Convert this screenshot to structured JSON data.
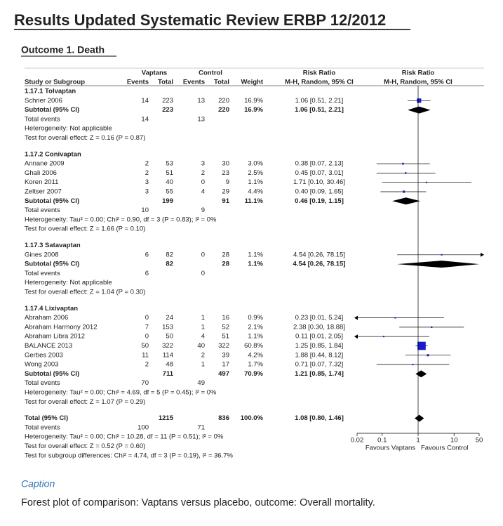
{
  "title": "Results Updated Systematic Review ERBP 12/2012",
  "outcome": "Outcome 1. Death",
  "header": {
    "group1": "Vaptans",
    "group2": "Control",
    "rr": "Risk Ratio",
    "rr_plot": "Risk Ratio",
    "study": "Study or Subgroup",
    "events1": "Events",
    "total1": "Total",
    "events2": "Events",
    "total2": "Total",
    "weight": "Weight",
    "method": "M-H, Random, 95% CI",
    "method_plot": "M-H, Random, 95% CI"
  },
  "axis": {
    "log": true,
    "xlim": [
      0.02,
      50
    ],
    "ticks": [
      0.02,
      0.1,
      1,
      10,
      50
    ],
    "ref": 1,
    "left_label": "Favours Vaptans",
    "right_label": "Favours Control"
  },
  "rows": [
    {
      "kind": "group",
      "name": "1.17.1 Tolvaptan"
    },
    {
      "kind": "study",
      "name": "Schrier 2006",
      "ve": 14,
      "vt": 223,
      "ce": 13,
      "ct": 220,
      "weight": 16.9,
      "weight_label": "16.9%",
      "ci_label": "1.06 [0.51, 2.21]",
      "est": 1.06,
      "lo": 0.51,
      "hi": 2.21
    },
    {
      "kind": "subtotal",
      "name": "Subtotal (95% CI)",
      "vt": 223,
      "ct": 220,
      "weight": 16.9,
      "weight_label": "16.9%",
      "ci_label": "1.06 [0.51, 2.21]",
      "est": 1.06,
      "lo": 0.51,
      "hi": 2.21
    },
    {
      "kind": "events",
      "name": "Total events",
      "ve": 14,
      "ce": 13
    },
    {
      "kind": "note",
      "name": "Heterogeneity: Not applicable"
    },
    {
      "kind": "note",
      "name": "Test for overall effect: Z = 0.16 (P = 0.87)"
    },
    {
      "kind": "group",
      "name": "1.17.2 Conivaptan"
    },
    {
      "kind": "study",
      "name": "Annane 2009",
      "ve": 2,
      "vt": 53,
      "ce": 3,
      "ct": 30,
      "weight": 3.0,
      "weight_label": "3.0%",
      "ci_label": "0.38 [0.07, 2.13]",
      "est": 0.38,
      "lo": 0.07,
      "hi": 2.13
    },
    {
      "kind": "study",
      "name": "Ghali 2006",
      "ve": 2,
      "vt": 51,
      "ce": 2,
      "ct": 23,
      "weight": 2.5,
      "weight_label": "2.5%",
      "ci_label": "0.45 [0.07, 3.01]",
      "est": 0.45,
      "lo": 0.07,
      "hi": 3.01
    },
    {
      "kind": "study",
      "name": "Koren 2011",
      "ve": 3,
      "vt": 40,
      "ce": 0,
      "ct": 9,
      "weight": 1.1,
      "weight_label": "1.1%",
      "ci_label": "1.71 [0.10, 30.46]",
      "est": 1.71,
      "lo": 0.1,
      "hi": 30.46
    },
    {
      "kind": "study",
      "name": "Zeltser 2007",
      "ve": 3,
      "vt": 55,
      "ce": 4,
      "ct": 29,
      "weight": 4.4,
      "weight_label": "4.4%",
      "ci_label": "0.40 [0.09, 1.65]",
      "est": 0.4,
      "lo": 0.09,
      "hi": 1.65
    },
    {
      "kind": "subtotal",
      "name": "Subtotal (95% CI)",
      "vt": 199,
      "ct": 91,
      "weight": 11.1,
      "weight_label": "11.1%",
      "ci_label": "0.46 [0.19, 1.15]",
      "est": 0.46,
      "lo": 0.19,
      "hi": 1.15
    },
    {
      "kind": "events",
      "name": "Total events",
      "ve": 10,
      "ce": 9
    },
    {
      "kind": "note",
      "name": "Heterogeneity: Tau² = 0.00; Chi² = 0.90, df = 3 (P = 0.83); I² = 0%"
    },
    {
      "kind": "note",
      "name": "Test for overall effect: Z = 1.66 (P = 0.10)"
    },
    {
      "kind": "group",
      "name": "1.17.3 Satavaptan"
    },
    {
      "kind": "study",
      "name": "Gines 2008",
      "ve": 6,
      "vt": 82,
      "ce": 0,
      "ct": 28,
      "weight": 1.1,
      "weight_label": "1.1%",
      "ci_label": "4.54 [0.26, 78.15]",
      "est": 4.54,
      "lo": 0.26,
      "hi": 78.15
    },
    {
      "kind": "subtotal",
      "name": "Subtotal (95% CI)",
      "vt": 82,
      "ct": 28,
      "weight": 1.1,
      "weight_label": "1.1%",
      "ci_label": "4.54 [0.26, 78.15]",
      "est": 4.54,
      "lo": 0.26,
      "hi": 78.15
    },
    {
      "kind": "events",
      "name": "Total events",
      "ve": 6,
      "ce": 0
    },
    {
      "kind": "note",
      "name": "Heterogeneity: Not applicable"
    },
    {
      "kind": "note",
      "name": "Test for overall effect: Z = 1.04 (P = 0.30)"
    },
    {
      "kind": "group",
      "name": "1.17.4 Lixivaptan"
    },
    {
      "kind": "study",
      "name": "Abraham 2006",
      "ve": 0,
      "vt": 24,
      "ce": 1,
      "ct": 16,
      "weight": 0.9,
      "weight_label": "0.9%",
      "ci_label": "0.23 [0.01, 5.24]",
      "est": 0.23,
      "lo": 0.01,
      "hi": 5.24
    },
    {
      "kind": "study",
      "name": "Abraham Harmony 2012",
      "ve": 7,
      "vt": 153,
      "ce": 1,
      "ct": 52,
      "weight": 2.1,
      "weight_label": "2.1%",
      "ci_label": "2.38 [0.30, 18.88]",
      "est": 2.38,
      "lo": 0.3,
      "hi": 18.88
    },
    {
      "kind": "study",
      "name": "Abraham Libra 2012",
      "ve": 0,
      "vt": 50,
      "ce": 4,
      "ct": 51,
      "weight": 1.1,
      "weight_label": "1.1%",
      "ci_label": "0.11 [0.01, 2.05]",
      "est": 0.11,
      "lo": 0.01,
      "hi": 2.05
    },
    {
      "kind": "study",
      "name": "BALANCE 2013",
      "ve": 50,
      "vt": 322,
      "ce": 40,
      "ct": 322,
      "weight": 60.8,
      "weight_label": "60.8%",
      "ci_label": "1.25 [0.85, 1.84]",
      "est": 1.25,
      "lo": 0.85,
      "hi": 1.84
    },
    {
      "kind": "study",
      "name": "Gerbes 2003",
      "ve": 11,
      "vt": 114,
      "ce": 2,
      "ct": 39,
      "weight": 4.2,
      "weight_label": "4.2%",
      "ci_label": "1.88 [0.44, 8.12]",
      "est": 1.88,
      "lo": 0.44,
      "hi": 8.12
    },
    {
      "kind": "study",
      "name": "Wong 2003",
      "ve": 2,
      "vt": 48,
      "ce": 1,
      "ct": 17,
      "weight": 1.7,
      "weight_label": "1.7%",
      "ci_label": "0.71 [0.07, 7.32]",
      "est": 0.71,
      "lo": 0.07,
      "hi": 7.32
    },
    {
      "kind": "subtotal",
      "name": "Subtotal (95% CI)",
      "vt": 711,
      "ct": 497,
      "weight": 70.9,
      "weight_label": "70.9%",
      "ci_label": "1.21 [0.85, 1.74]",
      "est": 1.21,
      "lo": 0.85,
      "hi": 1.74
    },
    {
      "kind": "events",
      "name": "Total events",
      "ve": 70,
      "ce": 49
    },
    {
      "kind": "note",
      "name": "Heterogeneity: Tau² = 0.00; Chi² = 4.69, df = 5 (P = 0.45); I² = 0%"
    },
    {
      "kind": "note",
      "name": "Test for overall effect: Z = 1.07 (P = 0.29)"
    },
    {
      "kind": "total",
      "name": "Total (95% CI)",
      "vt": 1215,
      "ct": 836,
      "weight": 100.0,
      "weight_label": "100.0%",
      "ci_label": "1.08 [0.80, 1.46]",
      "est": 1.08,
      "lo": 0.8,
      "hi": 1.46
    },
    {
      "kind": "events",
      "name": "Total events",
      "ve": 100,
      "ce": 71
    },
    {
      "kind": "note",
      "name": "Heterogeneity: Tau² = 0.00; Chi² = 10.28, df = 11 (P = 0.51); I² = 0%"
    },
    {
      "kind": "note",
      "name": "Test for overall effect: Z = 0.52 (P = 0.60)"
    },
    {
      "kind": "note",
      "name": "Test for subgroup differences: Chi² = 4.74, df = 3 (P = 0.19), I² = 36.7%"
    }
  ],
  "caption": {
    "heading": "Caption",
    "text": "Forest plot of comparison: Vaptans versus placebo, outcome: Overall mortality."
  }
}
